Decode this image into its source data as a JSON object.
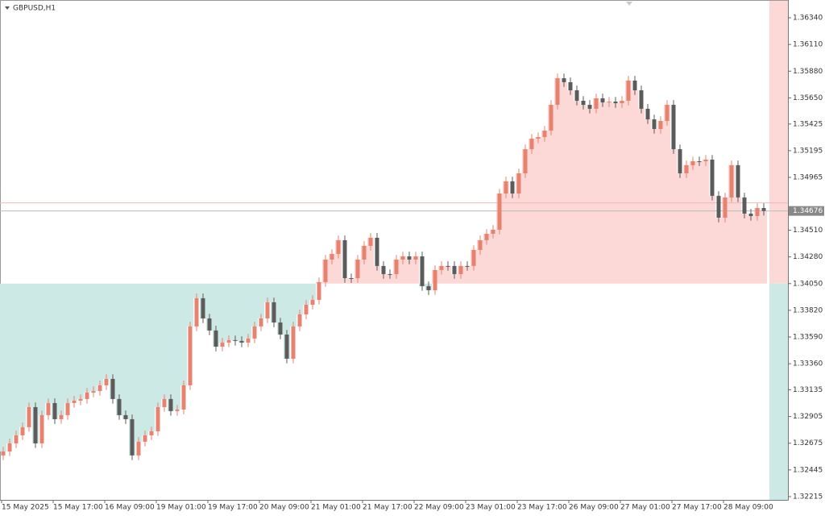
{
  "chart_data": {
    "type": "candlestick",
    "title": "GBPUSD,H1",
    "categories": [
      "15 May 2025",
      null,
      null,
      null,
      null,
      null,
      null,
      null,
      "15 May 17:00",
      null,
      null,
      null,
      null,
      null,
      null,
      null,
      "16 May 09:00",
      null,
      null,
      null,
      null,
      null,
      null,
      null,
      "19 May 01:00",
      null,
      null,
      null,
      null,
      null,
      null,
      null,
      "19 May 17:00",
      null,
      null,
      null,
      null,
      null,
      null,
      null,
      "20 May 09:00",
      null,
      null,
      null,
      null,
      null,
      null,
      null,
      "21 May 01:00",
      null,
      null,
      null,
      null,
      null,
      null,
      null,
      "21 May 17:00",
      null,
      null,
      null,
      null,
      null,
      null,
      null,
      "22 May 09:00",
      null,
      null,
      null,
      null,
      null,
      null,
      null,
      "23 May 01:00",
      null,
      null,
      null,
      null,
      null,
      null,
      null,
      "23 May 17:00",
      null,
      null,
      null,
      null,
      null,
      null,
      null,
      "26 May 09:00",
      null,
      null,
      null,
      null,
      null,
      null,
      null,
      "27 May 01:00",
      null,
      null,
      null,
      null,
      null,
      null,
      null,
      "27 May 17:00",
      null,
      null,
      null,
      null,
      null,
      null,
      null,
      "28 May 09:00",
      null,
      null,
      null,
      null,
      null,
      null
    ],
    "open": [
      1.3257,
      1.32604,
      1.32674,
      1.32743,
      1.32813,
      1.32986,
      1.32674,
      1.32917,
      1.33021,
      1.32882,
      1.32917,
      1.33021,
      1.33042,
      1.33056,
      1.33111,
      1.33125,
      1.33174,
      1.33229,
      1.33056,
      1.32917,
      1.32882,
      1.3257,
      1.32688,
      1.32743,
      1.32778,
      1.32986,
      1.33056,
      1.32952,
      1.32965,
      1.33174,
      1.33681,
      1.33924,
      1.3375,
      1.33646,
      1.33507,
      1.33542,
      1.33563,
      1.33556,
      1.33542,
      1.33577,
      1.33681,
      1.3375,
      1.33889,
      1.33715,
      1.33611,
      1.33403,
      1.33681,
      1.33785,
      1.33868,
      1.3391,
      1.34063,
      1.34257,
      1.34306,
      1.34424,
      1.34097,
      1.34097,
      1.34257,
      1.34375,
      1.34445,
      1.34202,
      1.34132,
      1.34132,
      1.34257,
      1.34285,
      1.34257,
      1.34285,
      1.34028,
      1.33993,
      1.34167,
      1.34202,
      1.34202,
      1.34132,
      1.34202,
      1.34202,
      1.3434,
      1.34424,
      1.34479,
      1.34514,
      1.34826,
      1.34931,
      1.34826,
      1.35,
      1.35208,
      1.35299,
      1.35312,
      1.35368,
      1.3559,
      1.35819,
      1.35785,
      1.35715,
      1.35625,
      1.3559,
      1.35556,
      1.35646,
      1.35611,
      1.35618,
      1.35604,
      1.35625,
      1.35799,
      1.35715,
      1.35556,
      1.35465,
      1.35382,
      1.35451,
      1.3559,
      1.35208,
      1.35,
      1.3507,
      1.35104,
      1.35104,
      1.35118,
      1.34806,
      1.34618,
      1.34792,
      1.3507,
      1.34792,
      1.34653,
      1.34632,
      1.34701
    ],
    "high": [
      1.32644,
      1.32714,
      1.32783,
      1.32853,
      1.33026,
      1.33026,
      1.32957,
      1.33061,
      1.33061,
      1.32957,
      1.33061,
      1.33082,
      1.33096,
      1.33151,
      1.33165,
      1.33214,
      1.33269,
      1.33269,
      1.33096,
      1.32957,
      1.32922,
      1.32728,
      1.32783,
      1.32818,
      1.33026,
      1.33096,
      1.33096,
      1.33005,
      1.33214,
      1.33721,
      1.33964,
      1.33964,
      1.3379,
      1.33686,
      1.33582,
      1.33603,
      1.33603,
      1.33596,
      1.33617,
      1.33721,
      1.3379,
      1.33929,
      1.33929,
      1.33755,
      1.33651,
      1.33721,
      1.33825,
      1.33908,
      1.3395,
      1.34103,
      1.34297,
      1.34346,
      1.34464,
      1.34464,
      1.34137,
      1.34297,
      1.34415,
      1.34485,
      1.34485,
      1.34242,
      1.34172,
      1.34297,
      1.34325,
      1.34325,
      1.34325,
      1.34325,
      1.34068,
      1.34207,
      1.34242,
      1.34242,
      1.34242,
      1.34242,
      1.34242,
      1.3438,
      1.34464,
      1.34519,
      1.34554,
      1.34866,
      1.34971,
      1.34971,
      1.3504,
      1.35248,
      1.35339,
      1.35352,
      1.35408,
      1.3563,
      1.35859,
      1.35859,
      1.35825,
      1.35755,
      1.35665,
      1.3563,
      1.35686,
      1.35686,
      1.35658,
      1.35658,
      1.35665,
      1.35839,
      1.35839,
      1.35755,
      1.35596,
      1.35505,
      1.35491,
      1.3563,
      1.3563,
      1.35248,
      1.3511,
      1.35144,
      1.35144,
      1.35158,
      1.35158,
      1.34846,
      1.34832,
      1.3511,
      1.3511,
      1.34832,
      1.34693,
      1.34741,
      1.34741
    ],
    "low": [
      1.3253,
      1.32564,
      1.32634,
      1.32703,
      1.32773,
      1.32634,
      1.32634,
      1.32877,
      1.32842,
      1.32842,
      1.32877,
      1.32981,
      1.33002,
      1.33016,
      1.33071,
      1.33085,
      1.33134,
      1.33016,
      1.32877,
      1.32842,
      1.3253,
      1.3253,
      1.32648,
      1.32703,
      1.32738,
      1.32946,
      1.32912,
      1.32912,
      1.32925,
      1.33134,
      1.33641,
      1.3371,
      1.33606,
      1.33467,
      1.33467,
      1.33502,
      1.33516,
      1.33502,
      1.33502,
      1.33537,
      1.33641,
      1.3371,
      1.33675,
      1.33571,
      1.33363,
      1.33363,
      1.33641,
      1.33745,
      1.33828,
      1.3387,
      1.34023,
      1.34217,
      1.34266,
      1.34057,
      1.34057,
      1.34057,
      1.34217,
      1.34335,
      1.34162,
      1.34092,
      1.34092,
      1.34092,
      1.34217,
      1.34217,
      1.34217,
      1.33988,
      1.33953,
      1.33953,
      1.34127,
      1.34162,
      1.34092,
      1.34092,
      1.34162,
      1.34162,
      1.343,
      1.34384,
      1.34439,
      1.34474,
      1.34786,
      1.34786,
      1.34786,
      1.3496,
      1.35168,
      1.35259,
      1.35272,
      1.35328,
      1.3555,
      1.35745,
      1.35675,
      1.35585,
      1.3555,
      1.35516,
      1.35516,
      1.35571,
      1.35571,
      1.35564,
      1.35564,
      1.35585,
      1.35675,
      1.35516,
      1.35425,
      1.35342,
      1.35342,
      1.35411,
      1.35168,
      1.3496,
      1.3496,
      1.3503,
      1.35064,
      1.35064,
      1.34766,
      1.34578,
      1.34578,
      1.34752,
      1.34752,
      1.34613,
      1.34592,
      1.34592,
      1.34636
    ],
    "close": [
      1.32604,
      1.32674,
      1.32743,
      1.32813,
      1.32986,
      1.32674,
      1.32917,
      1.33021,
      1.32882,
      1.32917,
      1.33021,
      1.33042,
      1.33056,
      1.33111,
      1.33125,
      1.33174,
      1.33229,
      1.33056,
      1.32917,
      1.32882,
      1.3257,
      1.32688,
      1.32743,
      1.32778,
      1.32986,
      1.33056,
      1.32952,
      1.32965,
      1.33174,
      1.33681,
      1.33924,
      1.3375,
      1.33646,
      1.33507,
      1.33542,
      1.33563,
      1.33556,
      1.33542,
      1.33577,
      1.33681,
      1.3375,
      1.33889,
      1.33715,
      1.33611,
      1.33403,
      1.33681,
      1.33785,
      1.33868,
      1.3391,
      1.34063,
      1.34257,
      1.34306,
      1.34424,
      1.34097,
      1.34097,
      1.34257,
      1.34375,
      1.34445,
      1.34202,
      1.34132,
      1.34132,
      1.34257,
      1.34285,
      1.34257,
      1.34285,
      1.34028,
      1.33993,
      1.34167,
      1.34202,
      1.34202,
      1.34132,
      1.34202,
      1.34202,
      1.3434,
      1.34424,
      1.34479,
      1.34514,
      1.34826,
      1.34931,
      1.34826,
      1.35,
      1.35208,
      1.35299,
      1.35312,
      1.35368,
      1.3559,
      1.35819,
      1.35785,
      1.35715,
      1.35625,
      1.3559,
      1.35556,
      1.35646,
      1.35611,
      1.35618,
      1.35604,
      1.35625,
      1.35799,
      1.35715,
      1.35556,
      1.35465,
      1.35382,
      1.35451,
      1.3559,
      1.35208,
      1.35,
      1.3507,
      1.35104,
      1.35104,
      1.35118,
      1.34806,
      1.34618,
      1.34792,
      1.3507,
      1.34792,
      1.34653,
      1.34632,
      1.34701,
      1.34676
    ],
    "up_color": "#e8826e",
    "down_color": "#5b5b5b",
    "level": 1.3405,
    "above_color": "#fcd9d6",
    "below_color": "#cde9e5",
    "ylim": [
      1.32187,
      1.36493
    ],
    "yticks": [
      {
        "value": 1.3634,
        "label": "1.36340"
      },
      {
        "value": 1.3611,
        "label": "1.36110"
      },
      {
        "value": 1.3588,
        "label": "1.35880"
      },
      {
        "value": 1.3565,
        "label": "1.35650"
      },
      {
        "value": 1.35425,
        "label": "1.35425"
      },
      {
        "value": 1.35195,
        "label": "1.35195"
      },
      {
        "value": 1.34965,
        "label": "1.34965"
      },
      {
        "value": 1.3451,
        "label": "1.34510"
      },
      {
        "value": 1.3428,
        "label": "1.34280"
      },
      {
        "value": 1.3405,
        "label": "1.34050"
      },
      {
        "value": 1.3382,
        "label": "1.33820"
      },
      {
        "value": 1.3359,
        "label": "1.33590"
      },
      {
        "value": 1.3336,
        "label": "1.33360"
      },
      {
        "value": 1.33135,
        "label": "1.33135"
      },
      {
        "value": 1.32905,
        "label": "1.32905"
      },
      {
        "value": 1.32675,
        "label": "1.32675"
      },
      {
        "value": 1.32445,
        "label": "1.32445"
      },
      {
        "value": 1.32215,
        "label": "1.32215"
      }
    ],
    "last_price": {
      "value": 1.34676,
      "label": "1.34676"
    },
    "ask_price": 1.34745,
    "grid": false
  }
}
